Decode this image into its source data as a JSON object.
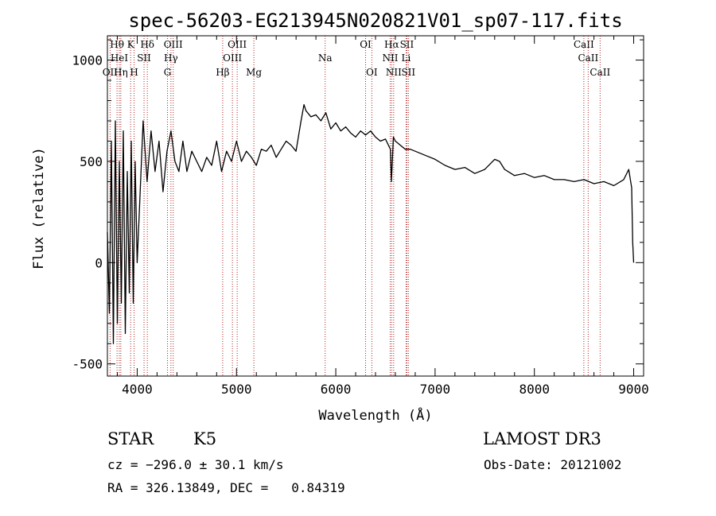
{
  "chart_data": {
    "type": "line",
    "title": "spec-56203-EG213945N020821V01_sp07-117.fits",
    "xlabel": "Wavelength (Å)",
    "ylabel": "Flux (relative)",
    "xlim": [
      3700,
      9100
    ],
    "ylim": [
      -560,
      1120
    ],
    "xticks": [
      4000,
      5000,
      6000,
      7000,
      8000,
      9000
    ],
    "yticks": [
      -500,
      0,
      500,
      1000
    ],
    "series": [
      {
        "name": "flux",
        "x": [
          3700,
          3720,
          3740,
          3760,
          3780,
          3800,
          3820,
          3840,
          3860,
          3880,
          3900,
          3920,
          3940,
          3960,
          3980,
          4000,
          4030,
          4060,
          4100,
          4140,
          4180,
          4220,
          4260,
          4300,
          4340,
          4380,
          4420,
          4460,
          4500,
          4550,
          4600,
          4650,
          4700,
          4750,
          4800,
          4850,
          4900,
          4950,
          5000,
          5050,
          5100,
          5150,
          5200,
          5250,
          5300,
          5350,
          5400,
          5450,
          5500,
          5550,
          5600,
          5650,
          5680,
          5700,
          5750,
          5800,
          5850,
          5900,
          5950,
          6000,
          6050,
          6100,
          6150,
          6200,
          6250,
          6300,
          6350,
          6400,
          6450,
          6500,
          6550,
          6560,
          6580,
          6600,
          6650,
          6700,
          6750,
          6800,
          6900,
          7000,
          7100,
          7200,
          7300,
          7400,
          7500,
          7600,
          7650,
          7700,
          7800,
          7900,
          8000,
          8100,
          8200,
          8300,
          8400,
          8500,
          8600,
          8700,
          8800,
          8900,
          8950,
          8980,
          8990,
          9000
        ],
        "y": [
          150,
          -250,
          600,
          -400,
          700,
          -300,
          500,
          -200,
          650,
          -350,
          450,
          -150,
          600,
          -200,
          500,
          0,
          350,
          700,
          400,
          650,
          450,
          600,
          350,
          550,
          650,
          500,
          450,
          600,
          450,
          550,
          500,
          450,
          520,
          480,
          600,
          450,
          550,
          500,
          600,
          500,
          550,
          520,
          480,
          560,
          550,
          580,
          520,
          560,
          600,
          580,
          550,
          700,
          780,
          750,
          720,
          730,
          700,
          740,
          660,
          690,
          650,
          670,
          640,
          620,
          650,
          630,
          650,
          620,
          600,
          610,
          560,
          400,
          620,
          600,
          580,
          560,
          560,
          550,
          530,
          510,
          480,
          460,
          470,
          440,
          460,
          510,
          500,
          460,
          430,
          440,
          420,
          430,
          410,
          410,
          400,
          410,
          390,
          400,
          380,
          410,
          460,
          370,
          100,
          0
        ]
      }
    ],
    "line_markers": [
      {
        "label": "OII",
        "wavelength": 3727,
        "row": 3
      },
      {
        "label": "Hθ",
        "wavelength": 3797,
        "row": 1
      },
      {
        "label": "HeI",
        "wavelength": 3820,
        "row": 2
      },
      {
        "label": "Hη",
        "wavelength": 3835,
        "row": 3
      },
      {
        "label": "K",
        "wavelength": 3934,
        "row": 1
      },
      {
        "label": "SII",
        "wavelength": 4069,
        "row": 2
      },
      {
        "label": "H",
        "wavelength": 3969,
        "row": 3
      },
      {
        "label": "Hδ",
        "wavelength": 4102,
        "row": 1
      },
      {
        "label": "OIII",
        "wavelength": 4363,
        "row": 1
      },
      {
        "label": "Hγ",
        "wavelength": 4340,
        "row": 2
      },
      {
        "label": "G",
        "wavelength": 4305,
        "row": 3
      },
      {
        "label": "Hβ",
        "wavelength": 4861,
        "row": 3
      },
      {
        "label": "OIII",
        "wavelength": 5007,
        "row": 1
      },
      {
        "label": "OIII",
        "wavelength": 4959,
        "row": 2
      },
      {
        "label": "Mg",
        "wavelength": 5175,
        "row": 3
      },
      {
        "label": "Na",
        "wavelength": 5893,
        "row": 2
      },
      {
        "label": "OI",
        "wavelength": 6300,
        "row": 1
      },
      {
        "label": "OI",
        "wavelength": 6363,
        "row": 3
      },
      {
        "label": "Hα",
        "wavelength": 6563,
        "row": 1
      },
      {
        "label": "SII",
        "wavelength": 6716,
        "row": 1
      },
      {
        "label": "NII",
        "wavelength": 6548,
        "row": 2
      },
      {
        "label": "Li",
        "wavelength": 6708,
        "row": 2
      },
      {
        "label": "NII",
        "wavelength": 6583,
        "row": 3
      },
      {
        "label": "SII",
        "wavelength": 6731,
        "row": 3
      },
      {
        "label": "CaII",
        "wavelength": 8498,
        "row": 1
      },
      {
        "label": "CaII",
        "wavelength": 8542,
        "row": 2
      },
      {
        "label": "CaII",
        "wavelength": 8662,
        "row": 3
      }
    ]
  },
  "info": {
    "object_class": "STAR",
    "subclass": "K5",
    "survey": "LAMOST DR3",
    "cz": "cz = −296.0 ± 30.1 km/s",
    "obs_date": "Obs-Date: 20121002",
    "coords": "RA = 326.13849, DEC =   0.84319"
  },
  "colors": {
    "marker_line": "#b22222",
    "spectrum": "#000000"
  }
}
